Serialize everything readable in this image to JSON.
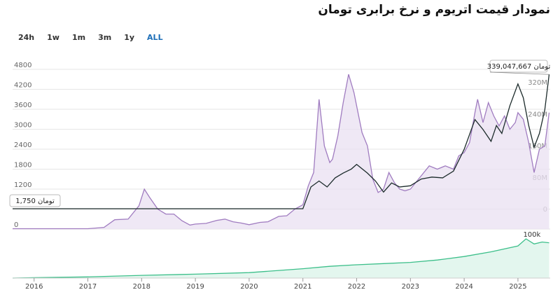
{
  "page": {
    "title": "نمودار قیمت اتریوم و نرخ برابری تومان",
    "ranges": [
      {
        "label": "24h",
        "active": false
      },
      {
        "label": "1w",
        "active": false
      },
      {
        "label": "1m",
        "active": false
      },
      {
        "label": "3m",
        "active": false
      },
      {
        "label": "1y",
        "active": false
      },
      {
        "label": "ALL",
        "active": true
      }
    ]
  },
  "colors": {
    "price_line": "#a07cc0",
    "price_fill": "#e9e0f2",
    "rate_line": "#1c2b2b",
    "volume_line": "#3cbf8a",
    "volume_fill": "#e3f6ee",
    "active_range": "#1e6fb8"
  },
  "chart_data": [
    {
      "type": "line",
      "name": "main",
      "xlabel": "",
      "ylabel": "",
      "x_ticks": [
        "2016",
        "2017",
        "2018",
        "2019",
        "2020",
        "2021",
        "2022",
        "2023",
        "2024",
        "2025"
      ],
      "y_left_ticks": [
        "0",
        "600",
        "1200",
        "1800",
        "2400",
        "3000",
        "3600",
        "4200",
        "4800"
      ],
      "y_right_ticks": [
        "0",
        "80M",
        "160M",
        "240M",
        "320M"
      ],
      "ylim_left": [
        0,
        4800
      ],
      "ylim_right": [
        0,
        320000000
      ],
      "grid": true,
      "annotations": {
        "rate_start_label": "1,750 تومان",
        "rate_end_label": "339,047,667 تومان"
      },
      "series": [
        {
          "axis": "left",
          "x": [
            2015.6,
            2016.5,
            2017.0,
            2017.3,
            2017.5,
            2017.75,
            2017.95,
            2018.05,
            2018.15,
            2018.3,
            2018.45,
            2018.6,
            2018.75,
            2018.9,
            2019.0,
            2019.2,
            2019.4,
            2019.55,
            2019.7,
            2019.85,
            2020.0,
            2020.2,
            2020.35,
            2020.55,
            2020.7,
            2020.85,
            2021.0,
            2021.1,
            2021.2,
            2021.3,
            2021.4,
            2021.5,
            2021.55,
            2021.65,
            2021.75,
            2021.85,
            2021.95,
            2022.0,
            2022.1,
            2022.2,
            2022.3,
            2022.4,
            2022.5,
            2022.6,
            2022.7,
            2022.8,
            2022.9,
            2023.0,
            2023.2,
            2023.35,
            2023.5,
            2023.65,
            2023.8,
            2023.9,
            2024.0,
            2024.1,
            2024.2,
            2024.25,
            2024.35,
            2024.45,
            2024.55,
            2024.65,
            2024.75,
            2024.85,
            2024.95,
            2025.0,
            2025.1,
            2025.2,
            2025.3,
            2025.4,
            2025.5,
            2025.58
          ],
          "values": [
            10,
            10,
            10,
            50,
            280,
            300,
            700,
            1200,
            950,
            600,
            450,
            450,
            250,
            120,
            150,
            170,
            260,
            300,
            220,
            180,
            130,
            200,
            220,
            380,
            400,
            600,
            730,
            1300,
            1700,
            3900,
            2500,
            2000,
            2100,
            2800,
            3800,
            4650,
            4100,
            3700,
            2900,
            2500,
            1500,
            1100,
            1200,
            1700,
            1400,
            1200,
            1150,
            1200,
            1600,
            1900,
            1800,
            1900,
            1800,
            2200,
            2300,
            2600,
            3500,
            3900,
            3200,
            3800,
            3400,
            3100,
            3400,
            3000,
            3200,
            3500,
            3300,
            2600,
            1700,
            2400,
            2500,
            3500
          ]
        },
        {
          "axis": "right",
          "x": [
            2015.6,
            2016.5,
            2017.5,
            2018.0,
            2018.3,
            2019.0,
            2020.0,
            2020.7,
            2021.0,
            2021.15,
            2021.3,
            2021.45,
            2021.6,
            2021.75,
            2021.9,
            2022.0,
            2022.2,
            2022.35,
            2022.5,
            2022.65,
            2022.8,
            2023.0,
            2023.2,
            2023.4,
            2023.6,
            2023.8,
            2024.0,
            2024.2,
            2024.35,
            2024.5,
            2024.6,
            2024.7,
            2024.85,
            2025.0,
            2025.1,
            2025.2,
            2025.3,
            2025.4,
            2025.5,
            2025.58
          ],
          "values": [
            1750,
            1750,
            2500,
            8000,
            6000,
            3000,
            3500,
            4500,
            9000,
            55000000,
            70000000,
            55000000,
            78000000,
            90000000,
            100000000,
            112000000,
            90000000,
            70000000,
            42000000,
            65000000,
            55000000,
            58000000,
            75000000,
            80000000,
            78000000,
            95000000,
            150000000,
            225000000,
            200000000,
            170000000,
            210000000,
            190000000,
            260000000,
            315000000,
            280000000,
            210000000,
            155000000,
            190000000,
            250000000,
            339047667
          ]
        },
        {
          "axis": "volume",
          "x": [
            2015.6,
            2016.0,
            2017.0,
            2018.0,
            2019.0,
            2020.0,
            2021.0,
            2021.5,
            2022.0,
            2022.5,
            2023.0,
            2023.5,
            2024.0,
            2024.5,
            2025.0,
            2025.15,
            2025.3,
            2025.45,
            2025.58
          ],
          "values": [
            0,
            1000,
            3000,
            7000,
            10000,
            14000,
            24000,
            30000,
            34000,
            37000,
            40000,
            46000,
            55000,
            67000,
            82000,
            100000,
            87000,
            92000,
            90000
          ],
          "peak_label": "100k"
        }
      ]
    }
  ]
}
